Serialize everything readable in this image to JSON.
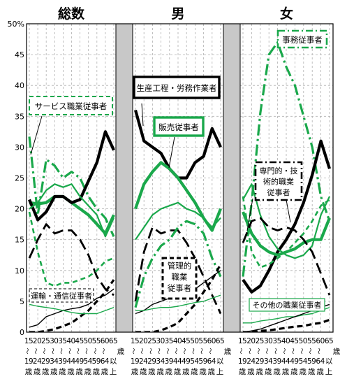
{
  "chart_data": {
    "type": "line",
    "ylim": [
      0,
      50
    ],
    "y_unit": "%",
    "y_ticks": [
      "0",
      "5",
      "10",
      "15",
      "20",
      "25",
      "30",
      "35",
      "40",
      "45",
      "50%"
    ],
    "x_top": [
      "15",
      "20",
      "25",
      "30",
      "35",
      "40",
      "45",
      "50",
      "55",
      "60",
      "65"
    ],
    "x_tilde": [
      "〜",
      "〜",
      "〜",
      "〜",
      "〜",
      "〜",
      "〜",
      "〜",
      "〜",
      "〜"
    ],
    "x_bottom": [
      "19",
      "24",
      "29",
      "34",
      "39",
      "44",
      "49",
      "54",
      "59",
      "64",
      "以"
    ],
    "x_sai": [
      "歳",
      "歳",
      "歳",
      "歳",
      "歳",
      "歳",
      "歳",
      "歳",
      "歳",
      "歳",
      "上"
    ],
    "age_suffix": "歳",
    "panels": [
      {
        "title": "総数",
        "series": [
          {
            "name": "事務従事者",
            "style": "green-dashdot",
            "values": [
              31.7,
              19,
              28,
              27,
              25,
              26,
              25,
              22,
              20,
              18.5,
              15.5
            ]
          },
          {
            "name": "販売従事者",
            "style": "green-thick",
            "values": [
              21,
              20.8,
              21,
              22,
              22,
              21,
              20,
              19,
              17.5,
              16,
              19
            ]
          },
          {
            "name": "生産工程・労務作業者",
            "style": "black-thick",
            "values": [
              21.5,
              18.2,
              19.5,
              22,
              22,
              21,
              21.5,
              24.5,
              27.5,
              32.5,
              29.5
            ]
          },
          {
            "name": "サービス職業従事者",
            "style": "green-thin",
            "values": [
              20,
              21,
              23,
              24,
              23.5,
              24,
              22,
              20.5,
              19,
              15.5,
              18.5
            ]
          },
          {
            "name": "専門的・技術的職業従事者",
            "style": "black-longdash",
            "values": [
              12,
              15,
              17.5,
              16,
              16.5,
              16.5,
              15,
              12.5,
              9,
              7,
              6
            ]
          },
          {
            "name": "管理的職業従事者",
            "style": "black-dashed-thick",
            "values": [
              0,
              0,
              0.2,
              0.5,
              1,
              1.5,
              2.5,
              3.5,
              5,
              6.5,
              8.5
            ]
          },
          {
            "name": "運輸・通信従事者",
            "style": "black-thin",
            "values": [
              0.8,
              1.2,
              2.5,
              3,
              3.5,
              3.8,
              4,
              4.5,
              5.5,
              6,
              7
            ]
          },
          {
            "name": "その他の職業従事者",
            "style": "green-thin-flat",
            "values": [
              4.5,
              4.2,
              4,
              3.8,
              3.5,
              3.2,
              3,
              3,
              3,
              3.5,
              4
            ]
          },
          {
            "name": "",
            "style": "green-dashed",
            "values": [
              19.5,
              13,
              8,
              7.5,
              8,
              8,
              8.5,
              9,
              10,
              11.5,
              12
            ]
          }
        ]
      },
      {
        "title": "男",
        "series": [
          {
            "name": "生産工程・労務作業者",
            "style": "black-thick",
            "values": [
              36,
              31,
              30,
              29,
              26.5,
              25,
              25,
              27.5,
              28.5,
              33,
              30
            ]
          },
          {
            "name": "販売従事者",
            "style": "green-thick",
            "values": [
              20,
              24,
              26,
              27.5,
              26.5,
              25,
              23,
              21,
              18.5,
              16.5,
              20
            ]
          },
          {
            "name": "サービス職業従事者",
            "style": "green-thin",
            "values": [
              15,
              17,
              19,
              20,
              20.5,
              21,
              20,
              19.5,
              18.5,
              17,
              18.5
            ]
          },
          {
            "name": "専門的・技術的職業従事者",
            "style": "black-longdash",
            "values": [
              5,
              13,
              17,
              16,
              16.5,
              16.5,
              14.5,
              12,
              9,
              6,
              3
            ]
          },
          {
            "name": "事務従事者",
            "style": "green-dashdot",
            "values": [
              4,
              9,
              12,
              14,
              15,
              17,
              18,
              17.5,
              16,
              12,
              9
            ]
          },
          {
            "name": "管理的職業従事者",
            "style": "black-dashed-thick",
            "values": [
              0,
              0,
              0,
              0.3,
              0.8,
              1.5,
              3,
              4.5,
              6.5,
              8.5,
              11
            ]
          },
          {
            "name": "運輸・通信従事者",
            "style": "black-thin",
            "values": [
              3,
              3.5,
              4.5,
              5,
              5.5,
              6,
              6.5,
              7,
              8,
              9,
              10
            ]
          },
          {
            "name": "その他の職業従事者",
            "style": "green-thin-flat",
            "values": [
              3.5,
              3.5,
              3.8,
              4,
              4,
              4.2,
              4.5,
              4.8,
              5,
              5.5,
              6
            ]
          }
        ]
      },
      {
        "title": "女",
        "series": [
          {
            "name": "事務従事者",
            "style": "green-dashdot",
            "values": [
              9,
              21,
              35.5,
              45,
              47,
              43,
              40,
              35,
              30,
              22,
              18
            ]
          },
          {
            "name": "生産工程・労務作業者",
            "style": "black-thick",
            "values": [
              8.5,
              6.5,
              7.5,
              10,
              13,
              15,
              17.5,
              21,
              25.5,
              31,
              26.5
            ]
          },
          {
            "name": "販売従事者",
            "style": "green-thick",
            "values": [
              19.5,
              16,
              14,
              13,
              12.5,
              13,
              13.5,
              14.5,
              15,
              15,
              18.5
            ]
          },
          {
            "name": "サービス職業従事者",
            "style": "green-thin",
            "values": [
              21.5,
              24,
              19,
              15.5,
              13.5,
              12.5,
              12,
              12.5,
              14,
              19,
              22
            ]
          },
          {
            "name": "専門的・技術的職業従事者",
            "style": "black-longdash",
            "values": [
              14.5,
              18,
              18.5,
              17,
              16.5,
              17,
              16.5,
              15,
              13,
              9.5,
              6
            ]
          },
          {
            "name": "",
            "style": "green-dashed",
            "values": [
              22,
              13,
              10.5,
              11,
              12,
              13,
              14.5,
              16,
              18,
              20.5,
              21.5
            ]
          },
          {
            "name": "その他の職業従事者",
            "style": "green-thin-flat",
            "values": [
              1.5,
              1.5,
              1.8,
              2,
              2.2,
              2.5,
              2.5,
              2.8,
              3,
              3.5,
              4
            ]
          },
          {
            "name": "管理的職業従事者",
            "style": "black-dashed-thick",
            "values": [
              0,
              0,
              0.2,
              0.3,
              0.5,
              0.7,
              0.9,
              1,
              1.3,
              1.5,
              2
            ]
          },
          {
            "name": "運輸・通信従事者",
            "style": "black-thin",
            "values": [
              0,
              0.2,
              0.5,
              1,
              1.5,
              2,
              2.5,
              3,
              3.5,
              4,
              4.5
            ]
          }
        ]
      }
    ],
    "annotations": [
      {
        "panel": 0,
        "text": "サービス職業従事者",
        "box": "green-dashed"
      },
      {
        "panel": 0,
        "text": "運輸・通信従事者",
        "box": "black-dashed-thin"
      },
      {
        "panel": 1,
        "text": "生産工程・労務作業者",
        "box": "black-thick"
      },
      {
        "panel": 1,
        "text": "販売従事者",
        "box": "green-thick"
      },
      {
        "panel": 1,
        "lines": [
          "管理的",
          "職業",
          "従事者"
        ],
        "box": "black-dashed-thick"
      },
      {
        "panel": 2,
        "text": "事務従事者",
        "box": "green-dashdot"
      },
      {
        "panel": 2,
        "lines": [
          "専門的・技",
          "術的職業",
          "従事者"
        ],
        "box": "black-dashdot"
      },
      {
        "panel": 2,
        "text": "その他の職業従事者",
        "box": "green-thin"
      }
    ],
    "colors": {
      "green": "#1aa84b",
      "black": "#000000",
      "grid": "#b0b0b0",
      "separator": "#c8c8c8"
    }
  }
}
